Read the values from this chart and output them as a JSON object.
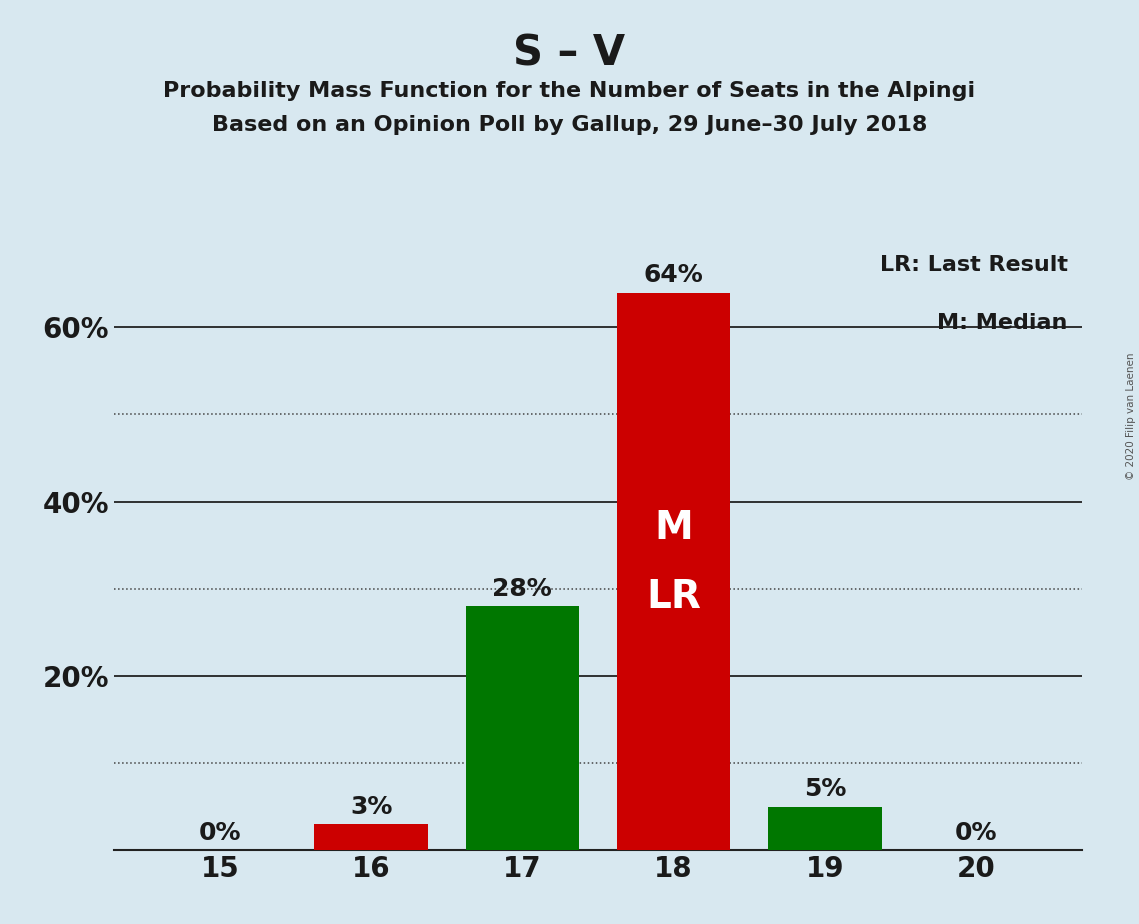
{
  "title": "S – V",
  "subtitle1": "Probability Mass Function for the Number of Seats in the Alpingi",
  "subtitle2": "Based on an Opinion Poll by Gallup, 29 June–30 July 2018",
  "copyright": "© 2020 Filip van Laenen",
  "seats": [
    15,
    16,
    17,
    18,
    19,
    20
  ],
  "probabilities": [
    0.0,
    0.03,
    0.28,
    0.64,
    0.05,
    0.0
  ],
  "bar_colors": [
    "#cc0000",
    "#cc0000",
    "#007700",
    "#cc0000",
    "#007700",
    "#cc0000"
  ],
  "median": 18,
  "last_result": 18,
  "legend_lr": "LR: Last Result",
  "legend_m": "M: Median",
  "background_color": "#d8e8f0",
  "solid_gridlines": [
    0.2,
    0.4,
    0.6
  ],
  "dotted_gridlines": [
    0.1,
    0.3,
    0.5
  ],
  "major_yticks": [
    0.0,
    0.2,
    0.4,
    0.6
  ],
  "major_ytick_labels": [
    "",
    "20%",
    "40%",
    "60%"
  ],
  "ylim": [
    0,
    0.7
  ],
  "xlim": [
    14.3,
    20.7
  ],
  "bar_width": 0.75,
  "title_fontsize": 30,
  "subtitle_fontsize": 16,
  "tick_fontsize": 20,
  "label_fontsize": 18,
  "inside_label_fontsize": 28,
  "legend_fontsize": 16
}
